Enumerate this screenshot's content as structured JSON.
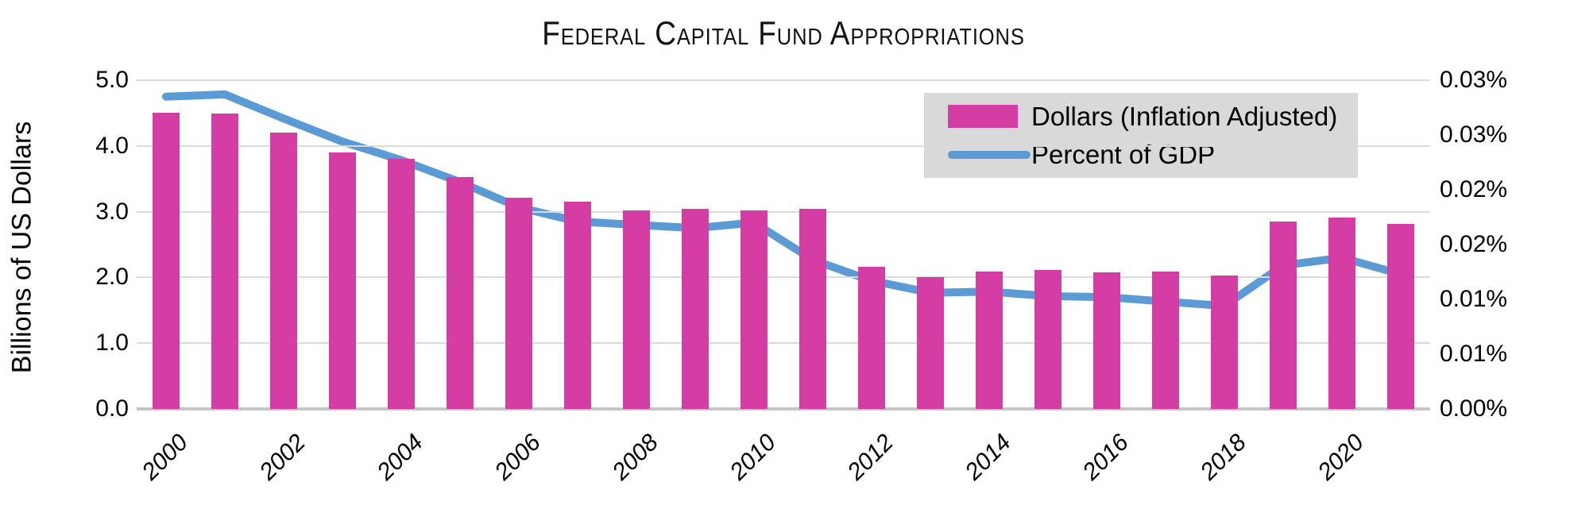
{
  "title": "Federal Capital Fund Appropriations",
  "legend": {
    "bar_label": "Dollars (Inflation Adjusted)",
    "line_label": "Percent of GDP"
  },
  "y_left_axis": {
    "label": "Billions of US Dollars",
    "ticks": [
      "5.0",
      "4.0",
      "3.0",
      "2.0",
      "1.0",
      "0.0"
    ]
  },
  "y_right_axis": {
    "ticks": [
      "0.03%",
      "0.03%",
      "0.02%",
      "0.02%",
      "0.01%",
      "0.01%",
      "0.00%"
    ]
  },
  "x_axis": {
    "labels": [
      "2000",
      "2002",
      "2004",
      "2006",
      "2008",
      "2010",
      "2012",
      "2014",
      "2016",
      "2018",
      "2020"
    ]
  },
  "colors": {
    "bar": "#d33da4",
    "line": "#5b9bd5",
    "legend_bg": "#d9d9d9",
    "gridline": "#dadada",
    "axis_line": "#c6c6c6",
    "text": "#000000"
  },
  "chart_data": {
    "type": "combo",
    "title": "Federal Capital Fund Appropriations",
    "categories": [
      2000,
      2001,
      2002,
      2003,
      2004,
      2005,
      2006,
      2007,
      2008,
      2009,
      2010,
      2011,
      2012,
      2013,
      2014,
      2015,
      2016,
      2017,
      2018,
      2019,
      2020,
      2021
    ],
    "series": [
      {
        "name": "Dollars (Inflation Adjusted)",
        "type": "bar",
        "axis": "left",
        "values": [
          4.5,
          4.49,
          4.2,
          3.9,
          3.81,
          3.53,
          3.21,
          3.15,
          3.02,
          3.04,
          3.02,
          3.04,
          2.16,
          2.01,
          2.09,
          2.11,
          2.08,
          2.09,
          2.03,
          2.85,
          2.91,
          2.82
        ]
      },
      {
        "name": "Percent of GDP",
        "type": "line",
        "axis": "right",
        "values_percent": [
          0.0285,
          0.0287,
          0.0265,
          0.0244,
          0.0227,
          0.0207,
          0.0184,
          0.0171,
          0.0168,
          0.0165,
          0.017,
          0.0136,
          0.0117,
          0.0106,
          0.0107,
          0.0103,
          0.0102,
          0.0098,
          0.0094,
          0.0131,
          0.0138,
          0.0123
        ]
      }
    ],
    "ylabel_left": "Billions of US Dollars",
    "ylim_left": [
      0.0,
      5.0
    ],
    "ylim_right_percent": [
      0.0,
      0.03
    ],
    "right_tick_step_percent": 0.005,
    "gridlines": "horizontal",
    "x_tick_interval": 2,
    "legend_position": "top-right"
  }
}
